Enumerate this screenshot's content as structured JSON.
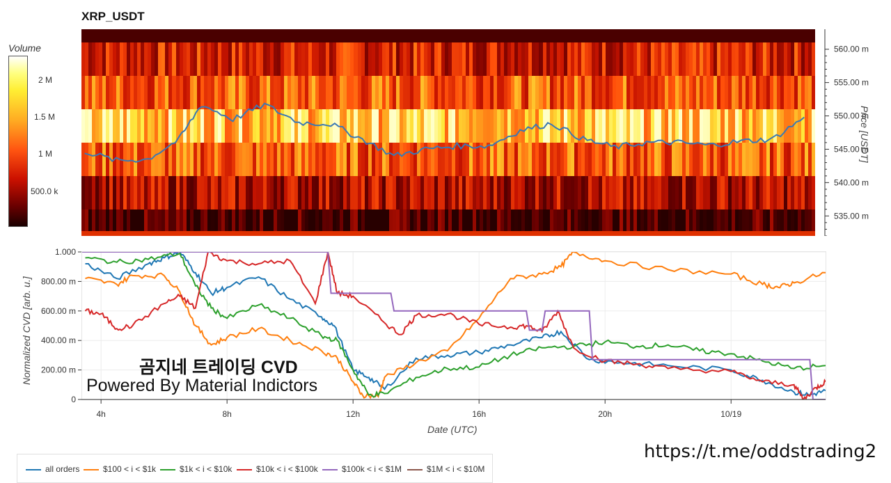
{
  "title": "XRP_USDT",
  "url_text": "https://t.me/oddstrading2",
  "watermark": {
    "line1": "곰지네 트레이딩 CVD",
    "line2": "Powered By Material Indictors"
  },
  "colorbar": {
    "title": "Volume",
    "ticks": [
      "2 M",
      "1.5 M",
      "1 M",
      "500.0 k"
    ]
  },
  "legend": [
    {
      "label": "all orders",
      "color": "#1f77b4"
    },
    {
      "label": "$100 < i < $1k",
      "color": "#ff7f0e"
    },
    {
      "label": "$1k < i < $10k",
      "color": "#2ca02c"
    },
    {
      "label": "$10k < i < $100k",
      "color": "#d62728"
    },
    {
      "label": "$100k < i < $1M",
      "color": "#9467bd"
    },
    {
      "label": "$1M < i < $10M",
      "color": "#8c564b"
    }
  ],
  "chart_data": [
    {
      "type": "heatmap",
      "title": "XRP_USDT",
      "ylabel": "Price [USDT]",
      "y_ticks": [
        "560.00 m",
        "555.00 m",
        "550.00 m",
        "545.00 m",
        "540.00 m",
        "535.00 m"
      ],
      "ylim": [
        532,
        563
      ],
      "colorbar_label": "Volume",
      "price_bands": [
        {
          "range": [
            556,
            561
          ],
          "level": 0.45
        },
        {
          "range": [
            551,
            556
          ],
          "level": 0.6
        },
        {
          "range": [
            546,
            551
          ],
          "level": 0.85
        },
        {
          "range": [
            541,
            546
          ],
          "level": 0.6
        },
        {
          "range": [
            536,
            541
          ],
          "level": 0.35
        },
        {
          "range": [
            532,
            536
          ],
          "level": 0.1
        }
      ],
      "price_series": {
        "name": "price",
        "t": [
          3.5,
          4.5,
          5.5,
          6.5,
          7.2,
          8.2,
          9.2,
          10.3,
          11.3,
          12.3,
          13.3,
          14.3,
          15.3,
          16.3,
          17.3,
          18.3,
          19.3,
          20.3,
          21.3,
          22.3,
          23.3,
          24.3,
          25.3,
          26.3
        ],
        "values": [
          544.7,
          543.3,
          543.5,
          546.5,
          551.7,
          549.5,
          551.7,
          549.0,
          548.8,
          546.5,
          544.0,
          545.0,
          545.5,
          545.5,
          547.8,
          548.9,
          546.5,
          545.3,
          546.0,
          546.0,
          545.6,
          546.2,
          546.5,
          549.8
        ]
      }
    },
    {
      "type": "line",
      "xlabel": "Date (UTC)",
      "ylabel": "Normalized CVD [arb. u.]",
      "x_ticks": [
        "4h",
        "8h",
        "12h",
        "16h",
        "20h",
        "10/19"
      ],
      "x_tick_hours": [
        4,
        8,
        12,
        16,
        20,
        24
      ],
      "xlim": [
        3.4,
        27.0
      ],
      "ylim": [
        0,
        1
      ],
      "y_ticks": [
        "1.000",
        "800.00 m",
        "600.00 m",
        "400.00 m",
        "200.00 m",
        "0"
      ],
      "series": [
        {
          "name": "all orders",
          "color": "#1f77b4",
          "t": [
            3.5,
            4.5,
            5.5,
            6.0,
            6.5,
            7.0,
            7.5,
            8.0,
            9.0,
            10.0,
            11.0,
            11.4,
            12.0,
            12.5,
            13.0,
            14.0,
            15.0,
            16.0,
            17.0,
            18.0,
            18.6,
            19.5,
            20.5,
            22.0,
            24.0,
            25.0,
            26.0,
            26.5,
            27.0
          ],
          "values": [
            0.92,
            0.82,
            0.92,
            0.96,
            1.0,
            0.86,
            0.72,
            0.76,
            0.83,
            0.68,
            0.56,
            0.5,
            0.2,
            0.15,
            0.07,
            0.28,
            0.3,
            0.32,
            0.37,
            0.42,
            0.46,
            0.27,
            0.25,
            0.23,
            0.2,
            0.13,
            0.05,
            0.03,
            0.06
          ]
        },
        {
          "name": "$100 < i < $1k",
          "color": "#ff7f0e",
          "t": [
            3.5,
            4.5,
            5.0,
            6.0,
            6.5,
            7.0,
            7.5,
            8.0,
            9.0,
            10.0,
            11.0,
            11.5,
            12.0,
            12.3,
            12.8,
            13.0,
            14.0,
            15.0,
            16.0,
            17.0,
            18.0,
            18.6,
            19.0,
            20.0,
            22.0,
            24.0,
            25.0,
            25.5,
            26.0,
            27.0
          ],
          "values": [
            0.82,
            0.78,
            0.84,
            0.84,
            0.73,
            0.5,
            0.37,
            0.42,
            0.48,
            0.4,
            0.33,
            0.28,
            0.12,
            0.03,
            0.02,
            0.15,
            0.25,
            0.33,
            0.55,
            0.82,
            0.85,
            0.9,
            1.0,
            0.94,
            0.88,
            0.85,
            0.78,
            0.76,
            0.79,
            0.86
          ]
        },
        {
          "name": "$1k < i < $10k",
          "color": "#2ca02c",
          "t": [
            3.5,
            4.5,
            5.5,
            6.5,
            7.0,
            7.5,
            8.0,
            9.0,
            10.0,
            11.0,
            11.5,
            12.0,
            12.5,
            13.0,
            14.0,
            15.0,
            16.0,
            17.0,
            18.0,
            19.0,
            20.0,
            21.0,
            22.0,
            23.0,
            24.0,
            25.0,
            26.0,
            27.0
          ],
          "values": [
            0.96,
            0.93,
            0.95,
            0.99,
            0.77,
            0.62,
            0.55,
            0.64,
            0.55,
            0.43,
            0.4,
            0.2,
            0.03,
            0.04,
            0.15,
            0.21,
            0.22,
            0.3,
            0.35,
            0.36,
            0.39,
            0.36,
            0.37,
            0.33,
            0.31,
            0.26,
            0.21,
            0.23
          ]
        },
        {
          "name": "$10k < i < $100k",
          "color": "#d62728",
          "t": [
            3.5,
            4.0,
            4.5,
            5.0,
            6.0,
            6.5,
            7.0,
            7.4,
            8.0,
            9.0,
            10.0,
            10.8,
            11.2,
            11.5,
            12.0,
            13.0,
            13.5,
            14.0,
            15.0,
            16.0,
            17.0,
            17.5,
            18.0,
            18.5,
            19.0,
            20.0,
            21.0,
            22.0,
            24.0,
            25.0,
            26.0,
            26.3,
            26.7,
            27.0
          ],
          "values": [
            0.6,
            0.58,
            0.48,
            0.5,
            0.65,
            0.7,
            0.62,
            1.0,
            0.94,
            0.92,
            0.94,
            0.65,
            1.0,
            0.72,
            0.7,
            0.52,
            0.44,
            0.57,
            0.58,
            0.51,
            0.49,
            0.5,
            0.46,
            0.6,
            0.35,
            0.26,
            0.24,
            0.21,
            0.19,
            0.12,
            0.1,
            0.0,
            0.08,
            0.12
          ]
        },
        {
          "name": "$100k < i < $1M",
          "color": "#9467bd",
          "t": [
            3.4,
            11.2,
            11.3,
            13.2,
            13.3,
            17.5,
            17.6,
            18.0,
            18.1,
            19.5,
            19.6,
            26.5,
            26.6,
            27.0
          ],
          "values": [
            1.0,
            1.0,
            0.72,
            0.72,
            0.6,
            0.6,
            0.47,
            0.47,
            0.6,
            0.6,
            0.27,
            0.27,
            0.0,
            0.0
          ]
        }
      ]
    }
  ]
}
